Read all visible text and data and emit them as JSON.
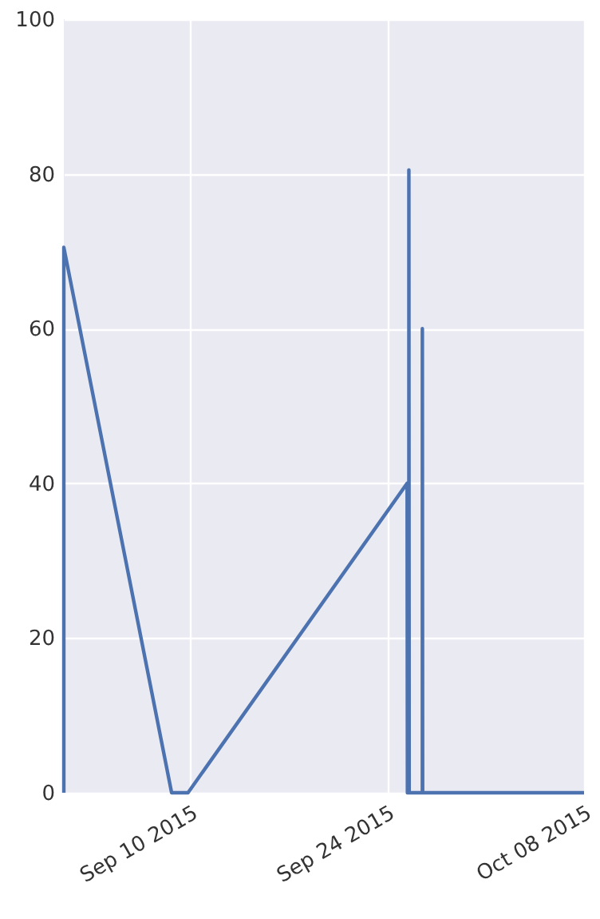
{
  "chart_data": {
    "type": "line",
    "x": [
      "2015-09-01",
      "2015-09-01",
      "2015-09-08T16:00",
      "2015-09-09T20:00",
      "2015-09-25T10:00",
      "2015-09-25T10:30",
      "2015-09-25T13:00",
      "2015-09-25T13:00",
      "2015-09-25T13:30",
      "2015-09-26T12:00",
      "2015-09-26T12:00",
      "2015-09-26T12:30",
      "2015-10-08"
    ],
    "series": [
      {
        "color": "#4c72b0",
        "values": [
          0,
          70.5,
          0,
          0,
          40,
          0,
          0,
          80.5,
          0,
          0,
          60,
          0,
          0
        ]
      }
    ],
    "xlim": [
      "2015-09-01",
      "2015-10-08"
    ],
    "xticks": [
      {
        "value": "2015-09-10",
        "label": "Sep 10 2015"
      },
      {
        "value": "2015-09-24",
        "label": "Sep 24 2015"
      },
      {
        "value": "2015-10-08",
        "label": "Oct 08 2015"
      }
    ],
    "ylim": [
      0,
      100
    ],
    "yticks": [
      0,
      20,
      40,
      60,
      80,
      100
    ],
    "grid": true,
    "line_style": "solid",
    "marker": "none"
  }
}
